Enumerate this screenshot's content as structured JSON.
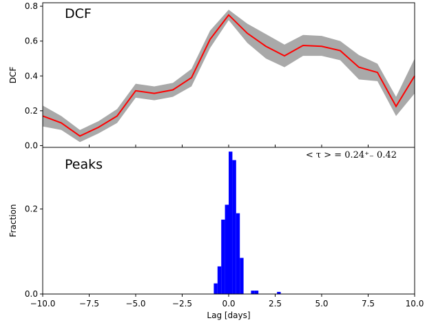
{
  "chart_data": [
    {
      "type": "line",
      "title": "DCF",
      "xlabel": "",
      "ylabel": "DCF",
      "xlim": [
        -10,
        10
      ],
      "ylim": [
        -0.01,
        0.82
      ],
      "yticks": [
        0.0,
        0.2,
        0.4,
        0.6,
        0.8
      ],
      "ytick_labels": [
        "0.0",
        "0.2",
        "0.4",
        "0.6",
        "0.8"
      ],
      "x": [
        -10,
        -9,
        -8,
        -7,
        -6,
        -5,
        -4,
        -3,
        -2,
        -1,
        0,
        1,
        2,
        3,
        4,
        5,
        6,
        7,
        8,
        9,
        10
      ],
      "series": [
        {
          "values": [
            0.17,
            0.13,
            0.055,
            0.105,
            0.17,
            0.315,
            0.3,
            0.32,
            0.39,
            0.61,
            0.75,
            0.645,
            0.57,
            0.515,
            0.575,
            0.57,
            0.545,
            0.45,
            0.42,
            0.225,
            0.4
          ],
          "band_lower": [
            0.11,
            0.09,
            0.02,
            0.07,
            0.13,
            0.275,
            0.26,
            0.28,
            0.34,
            0.56,
            0.72,
            0.59,
            0.5,
            0.45,
            0.515,
            0.515,
            0.49,
            0.38,
            0.37,
            0.17,
            0.3
          ],
          "band_upper": [
            0.23,
            0.17,
            0.09,
            0.14,
            0.21,
            0.355,
            0.34,
            0.36,
            0.44,
            0.66,
            0.78,
            0.7,
            0.64,
            0.58,
            0.635,
            0.63,
            0.6,
            0.52,
            0.47,
            0.28,
            0.5
          ],
          "line_color": "#ff0000",
          "band_color": "#a9a9a9"
        }
      ],
      "grid": false
    },
    {
      "type": "bar",
      "title": "Peaks",
      "xlabel": "Lag [days]",
      "ylabel": "Fraction",
      "xlim": [
        -10,
        10
      ],
      "ylim": [
        0,
        0.345
      ],
      "xticks": [
        -10,
        -7.5,
        -5,
        -2.5,
        0,
        2.5,
        5,
        7.5,
        10
      ],
      "xtick_labels": [
        "−10.0",
        "−7.5",
        "−5.0",
        "−2.5",
        "0.0",
        "2.5",
        "5.0",
        "7.5",
        "10.0"
      ],
      "yticks": [
        0.0,
        0.2
      ],
      "ytick_labels": [
        "0.0",
        "0.2"
      ],
      "bin_width": 0.2,
      "bin_left_edges": [
        -0.8,
        -0.6,
        -0.4,
        -0.2,
        0.0,
        0.2,
        0.4,
        0.6,
        1.2,
        1.4,
        2.6
      ],
      "values": [
        0.025,
        0.065,
        0.175,
        0.21,
        0.335,
        0.315,
        0.19,
        0.085,
        0.008,
        0.008,
        0.005
      ],
      "bar_color": "#0000ff",
      "annotation": "< τ > = 0.24⁺₋ 0.42",
      "grid": false
    }
  ]
}
